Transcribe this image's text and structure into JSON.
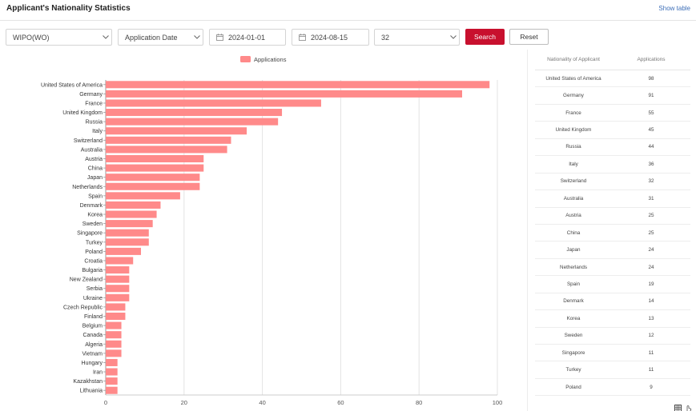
{
  "header": {
    "title": "Applicant's Nationality Statistics",
    "show_table": "Show table"
  },
  "filters": {
    "office": "WIPO(WO)",
    "date_type": "Application Date",
    "start_date": "2024-01-01",
    "end_date": "2024-08-15",
    "limit": "32",
    "search_label": "Search",
    "reset_label": "Reset"
  },
  "colors": {
    "bar": "#ff8a8a",
    "accent": "#c8102e",
    "link": "#3e6fb8"
  },
  "chart_data": {
    "type": "bar",
    "orientation": "horizontal",
    "legend": "Applications",
    "legend_position": "top-center",
    "xlim": [
      0,
      100
    ],
    "xticks": [
      0,
      20,
      40,
      60,
      80,
      100
    ],
    "grid": true,
    "categories": [
      "United States of America",
      "Germany",
      "France",
      "United Kingdom",
      "Russia",
      "Italy",
      "Switzerland",
      "Australia",
      "Austria",
      "China",
      "Japan",
      "Netherlands",
      "Spain",
      "Denmark",
      "Korea",
      "Sweden",
      "Singapore",
      "Turkey",
      "Poland",
      "Croatia",
      "Bulgaria",
      "New Zealand",
      "Serbia",
      "Ukraine",
      "Czech Republic",
      "Finland",
      "Belgium",
      "Canada",
      "Algeria",
      "Vietnam",
      "Hungary",
      "Iran",
      "Kazakhstan",
      "Lithuania"
    ],
    "values": [
      98,
      91,
      55,
      45,
      44,
      36,
      32,
      31,
      25,
      25,
      24,
      24,
      19,
      14,
      13,
      12,
      11,
      11,
      9,
      7,
      6,
      6,
      6,
      6,
      5,
      5,
      4,
      4,
      4,
      4,
      3,
      3,
      3,
      3
    ]
  },
  "table": {
    "headers": [
      "Nationality of Applicant",
      "Applications"
    ],
    "rows": [
      [
        "United States of America",
        "98"
      ],
      [
        "Germany",
        "91"
      ],
      [
        "France",
        "55"
      ],
      [
        "United Kingdom",
        "45"
      ],
      [
        "Russia",
        "44"
      ],
      [
        "Italy",
        "36"
      ],
      [
        "Switzerland",
        "32"
      ],
      [
        "Australia",
        "31"
      ],
      [
        "Austria",
        "25"
      ],
      [
        "China",
        "25"
      ],
      [
        "Japan",
        "24"
      ],
      [
        "Netherlands",
        "24"
      ],
      [
        "Spain",
        "19"
      ],
      [
        "Denmark",
        "14"
      ],
      [
        "Korea",
        "13"
      ],
      [
        "Sweden",
        "12"
      ],
      [
        "Singapore",
        "11"
      ],
      [
        "Turkey",
        "11"
      ],
      [
        "Poland",
        "9"
      ]
    ]
  },
  "icons": {
    "corner_left": "grid-icon",
    "corner_right": "pointer-icon"
  }
}
